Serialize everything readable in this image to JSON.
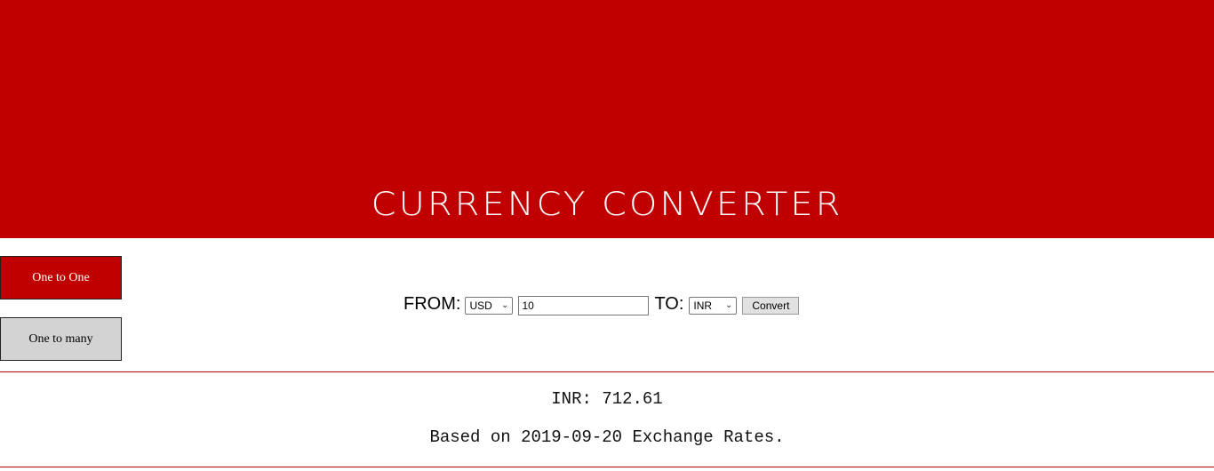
{
  "header": {
    "title": "CURRENCY CONVERTER",
    "background": "#c00000"
  },
  "modes": {
    "one_to_one": "One to One",
    "one_to_many": "One to many",
    "active": "one_to_one"
  },
  "form": {
    "from_label": "FROM:",
    "from_currency": "USD",
    "amount": "10",
    "to_label": "TO:",
    "to_currency": "INR",
    "convert_label": "Convert"
  },
  "result": {
    "value_text": "INR: 712.61",
    "note_text": "Based on 2019-09-20 Exchange Rates."
  }
}
